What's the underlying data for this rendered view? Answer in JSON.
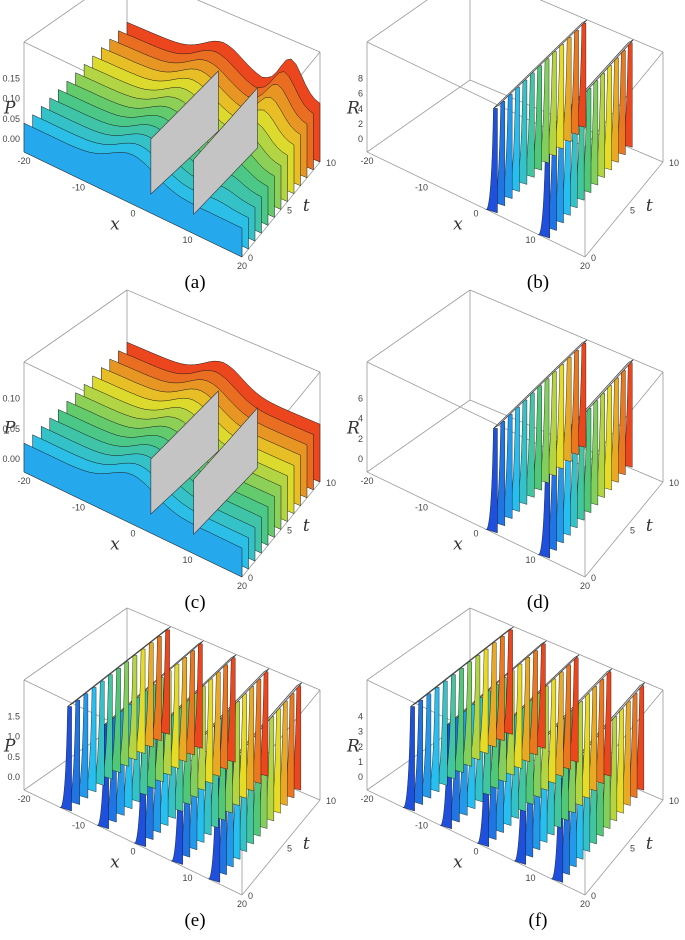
{
  "figure": {
    "panels": [
      {
        "id": "a",
        "caption": "(a)",
        "zlabel": "P",
        "xlabel": "x",
        "tlabel": "t",
        "zticks": [
          "0.00",
          "0.05",
          "0.10",
          "0.15"
        ],
        "xticks": [
          "-20",
          "-10",
          "0",
          "10",
          "20"
        ],
        "tticks": [
          "0",
          "5",
          "10"
        ],
        "surface": "smooth"
      },
      {
        "id": "b",
        "caption": "(b)",
        "zlabel": "R",
        "xlabel": "x",
        "tlabel": "t",
        "zticks": [
          "0",
          "2",
          "4",
          "6",
          "8"
        ],
        "xticks": [
          "-20",
          "-10",
          "0",
          "10",
          "20"
        ],
        "tticks": [
          "0",
          "5",
          "10"
        ],
        "surface": "walls",
        "walls": 2
      },
      {
        "id": "c",
        "caption": "(c)",
        "zlabel": "P",
        "xlabel": "x",
        "tlabel": "t",
        "zticks": [
          "0.00",
          "0.05",
          "0.10"
        ],
        "xticks": [
          "-20",
          "-10",
          "0",
          "10",
          "20"
        ],
        "tticks": [
          "0",
          "5",
          "10"
        ],
        "surface": "smooth"
      },
      {
        "id": "d",
        "caption": "(d)",
        "zlabel": "R",
        "xlabel": "x",
        "tlabel": "t",
        "zticks": [
          "0",
          "2",
          "4",
          "6"
        ],
        "xticks": [
          "-20",
          "-10",
          "0",
          "10",
          "20"
        ],
        "tticks": [
          "0",
          "5",
          "10"
        ],
        "surface": "walls",
        "walls": 2
      },
      {
        "id": "e",
        "caption": "(e)",
        "zlabel": "P",
        "xlabel": "x",
        "tlabel": "t",
        "zticks": [
          "0.0",
          "0.5",
          "1.0",
          "1.5"
        ],
        "xticks": [
          "-20",
          "-10",
          "0",
          "10",
          "20"
        ],
        "tticks": [
          "0",
          "5",
          "10"
        ],
        "surface": "walls",
        "walls": 5
      },
      {
        "id": "f",
        "caption": "(f)",
        "zlabel": "R",
        "xlabel": "x",
        "tlabel": "t",
        "zticks": [
          "0",
          "1",
          "2",
          "3",
          "4"
        ],
        "xticks": [
          "-20",
          "-10",
          "0",
          "10",
          "20"
        ],
        "tticks": [
          "0",
          "5",
          "10"
        ],
        "surface": "walls",
        "walls": 5
      }
    ]
  }
}
